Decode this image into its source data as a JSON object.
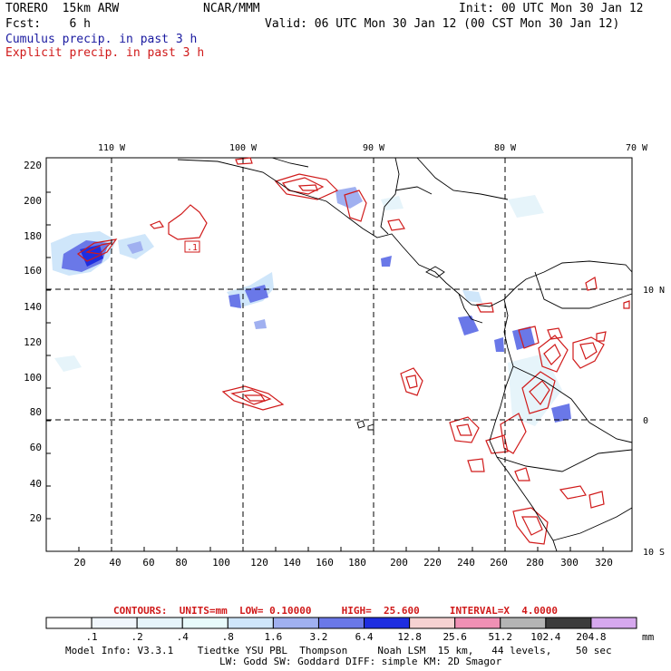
{
  "header": {
    "model": "TORERO  15km ARW",
    "org": "NCAR/MMM",
    "init": "Init: 00 UTC Mon 30 Jan 12",
    "fcst": "Fcst:    6 h",
    "valid": "Valid: 06 UTC Mon 30 Jan 12 (00 CST Mon 30 Jan 12)",
    "field1": "Cumulus precip. in past 3 h",
    "field2": "Explicit precip. in past 3 h"
  },
  "map": {
    "lon_labels": [
      "110 W",
      "100 W",
      "90 W",
      "80 W",
      "70 W"
    ],
    "lat_labels": [
      "10 N",
      "0",
      "10 S"
    ],
    "x_ticks": [
      "20",
      "40",
      "60",
      "80",
      "100",
      "120",
      "140",
      "160",
      "180",
      "200",
      "220",
      "240",
      "260",
      "280",
      "300",
      "320"
    ],
    "y_ticks": [
      "20",
      "40",
      "60",
      "80",
      "100",
      "120",
      "140",
      "160",
      "180",
      "200",
      "220"
    ],
    "contour_label": ".1"
  },
  "contours_caption": "CONTOURS:  UNITS=mm  LOW= 0.10000     HIGH=  25.600     INTERVAL=X  4.0000",
  "colorbar": {
    "labels": [
      ".1",
      ".2",
      ".4",
      ".8",
      "1.6",
      "3.2",
      "6.4",
      "12.8",
      "25.6",
      "51.2",
      "102.4",
      "204.8"
    ],
    "units": "mm",
    "colors": [
      "#ffffff",
      "#f0f6fc",
      "#e6f4fa",
      "#e8fbfb",
      "#cfe6fa",
      "#a0b0f0",
      "#6a78e8",
      "#1e2ee0",
      "#f6d2d2",
      "#f090b4",
      "#b4b4b4",
      "#3c3c3c",
      "#d6a8ee"
    ]
  },
  "footer": {
    "line1": "Model Info: V3.3.1    Tiedtke YSU PBL  Thompson     Noah LSM  15 km,   44 levels,    50 sec",
    "line2": "LW: Godd SW: Goddard DIFF: simple KM: 2D Smagor"
  }
}
